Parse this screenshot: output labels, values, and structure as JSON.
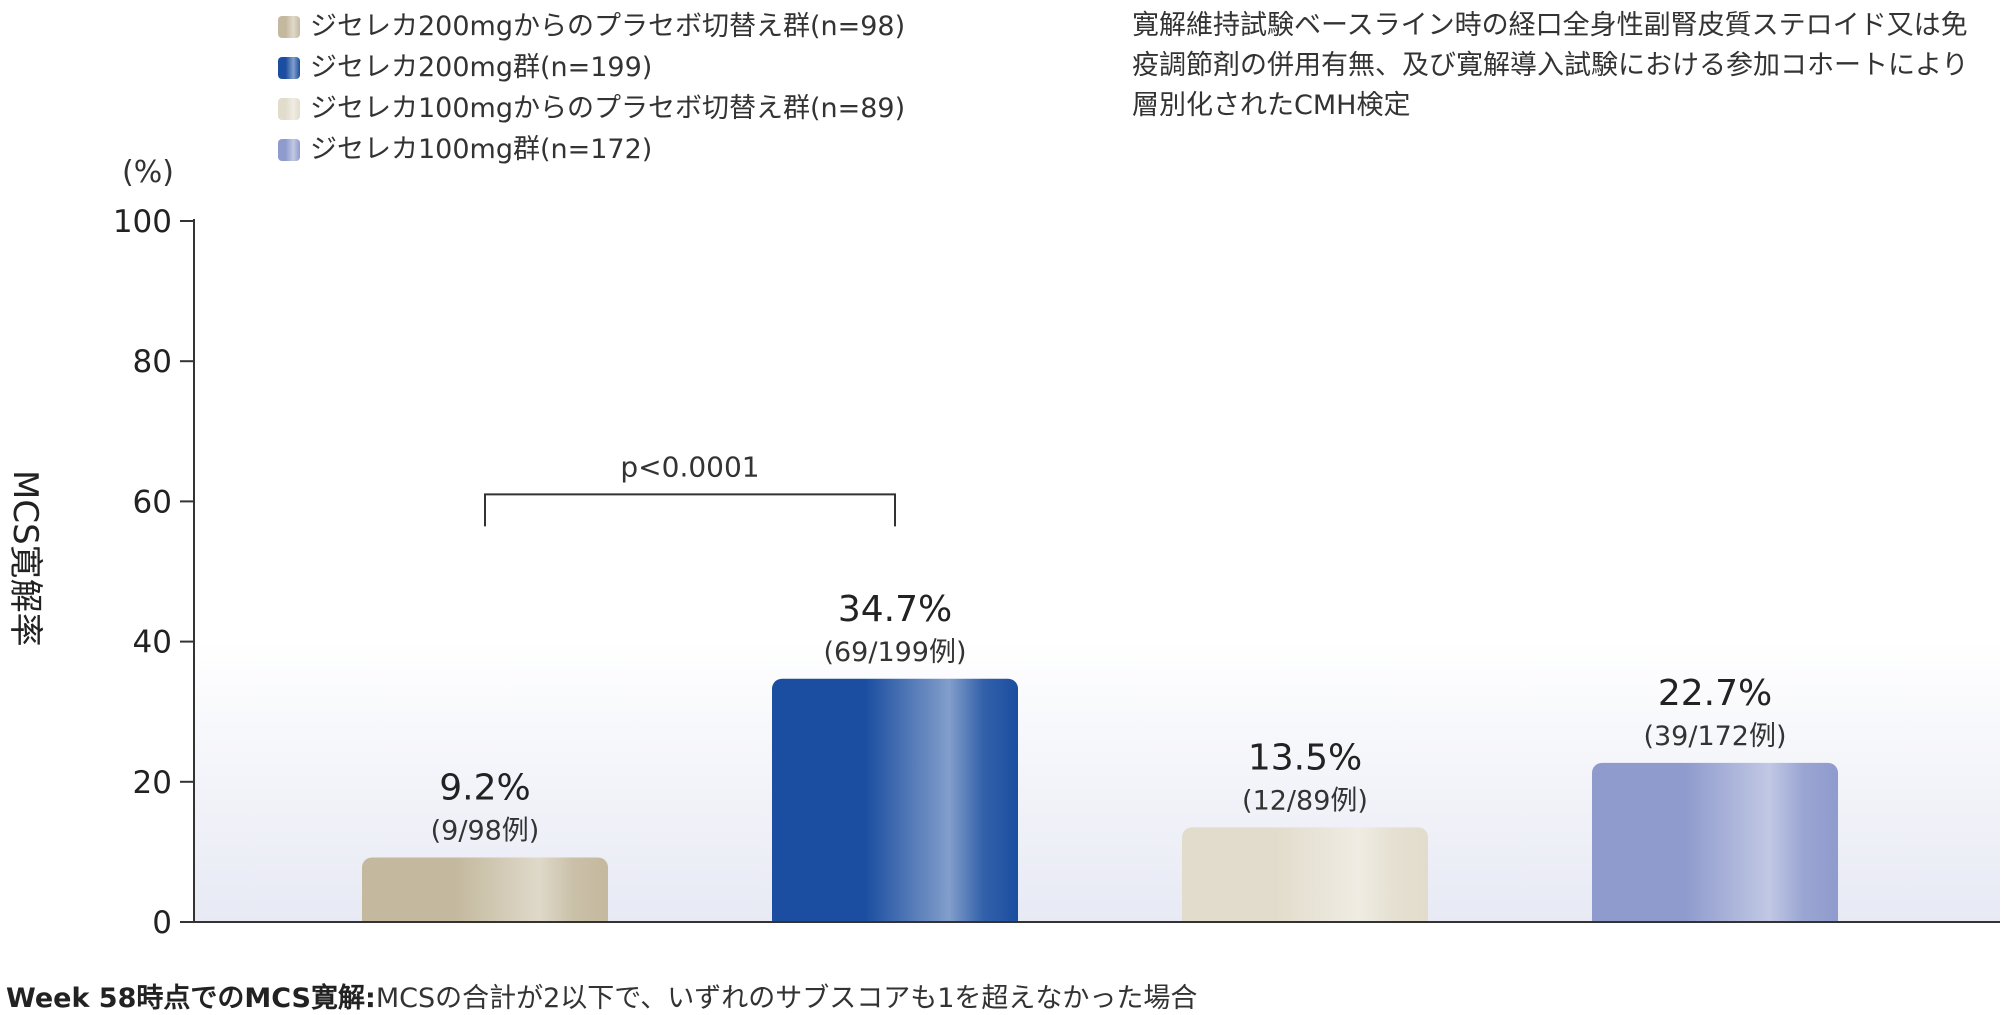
{
  "chart_data": {
    "type": "bar",
    "ylabel": "MCS寛解率",
    "y_unit": "(%)",
    "ylim": [
      0,
      100
    ],
    "yticks": [
      0,
      20,
      40,
      60,
      80,
      100
    ],
    "grid": false,
    "legend_position": "top-left",
    "categories": [
      "ジセレカ200mgからのプラセボ切替え群(n=98)",
      "ジセレカ200mg群(n=199)",
      "ジセレカ100mgからのプラセボ切替え群(n=89)",
      "ジセレカ100mg群(n=172)"
    ],
    "series": [
      {
        "values": [
          9.2,
          34.7,
          13.5,
          22.7
        ],
        "value_labels": [
          "9.2%",
          "34.7%",
          "13.5%",
          "22.7%"
        ],
        "count_labels": [
          "(9/98例)",
          "(69/199例)",
          "(12/89例)",
          "(39/172例)"
        ],
        "colors": [
          "#c4b99e",
          "#1b4ea0",
          "#e2dccc",
          "#8f9bcd"
        ]
      }
    ],
    "annotations": [
      {
        "text": "p<0.0001",
        "from_category": 0,
        "to_category": 1,
        "y": 61
      }
    ]
  },
  "legend": [
    {
      "label": "ジセレカ200mgからのプラセボ切替え群(n=98)",
      "color": "#c4b99e"
    },
    {
      "label": "ジセレカ200mg群(n=199)",
      "color": "#1b4ea0"
    },
    {
      "label": "ジセレカ100mgからのプラセボ切替え群(n=89)",
      "color": "#e2dccc"
    },
    {
      "label": "ジセレカ100mg群(n=172)",
      "color": "#8f9bcd"
    }
  ],
  "note": "寛解維持試験ベースライン時の経口全身性副腎皮質ステロイド又は免疫調節剤の併用有無、及び寛解導入試験における参加コホートにより層別化されたCMH検定",
  "footnote": {
    "bold": "Week 58時点でのMCS寛解:",
    "text": "MCSの合計が2以下で、いずれのサブスコアも1を超えなかった場合"
  }
}
